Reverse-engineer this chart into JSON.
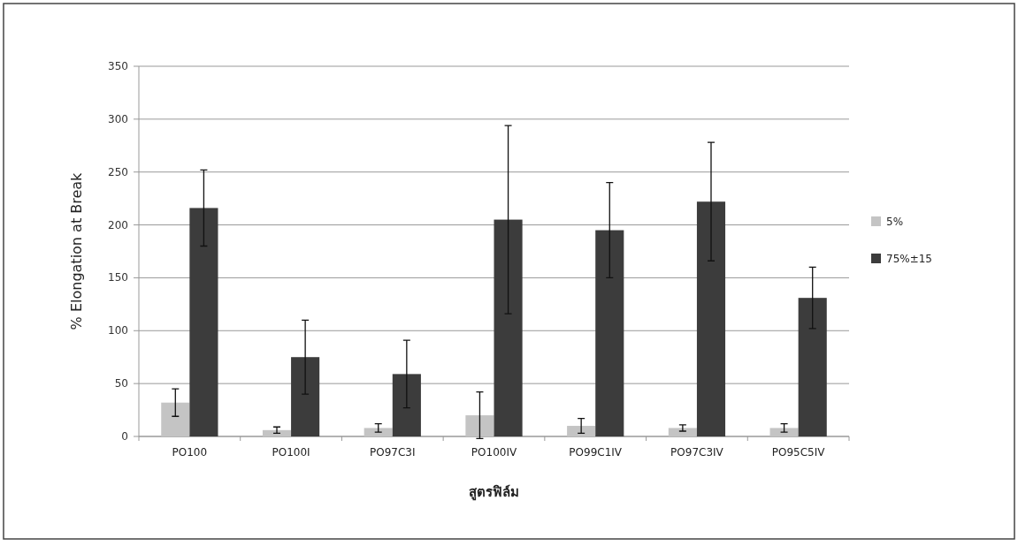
{
  "chart_data": {
    "type": "bar",
    "xlabel": "สูตรฟิล์ม",
    "ylabel": "% Elongation at Break",
    "categories": [
      "PO100",
      "PO100I",
      "PO97C3I",
      "PO100IV",
      "PO99C1IV",
      "PO97C3IV",
      "PO95C5IV"
    ],
    "series": [
      {
        "name": "5%",
        "color": "#c4c4c4",
        "values": [
          32,
          6,
          8,
          20,
          10,
          8,
          8
        ],
        "errors": [
          13,
          3,
          4,
          22,
          7,
          3,
          4
        ]
      },
      {
        "name": "75%±15",
        "color": "#3c3c3c",
        "values": [
          216,
          75,
          59,
          205,
          195,
          222,
          131
        ],
        "errors": [
          36,
          35,
          32,
          89,
          45,
          56,
          29
        ]
      }
    ],
    "ylim": [
      0,
      350
    ],
    "yticks": [
      0,
      50,
      100,
      150,
      200,
      250,
      300,
      350
    ],
    "grid": "y",
    "legend": "right"
  }
}
